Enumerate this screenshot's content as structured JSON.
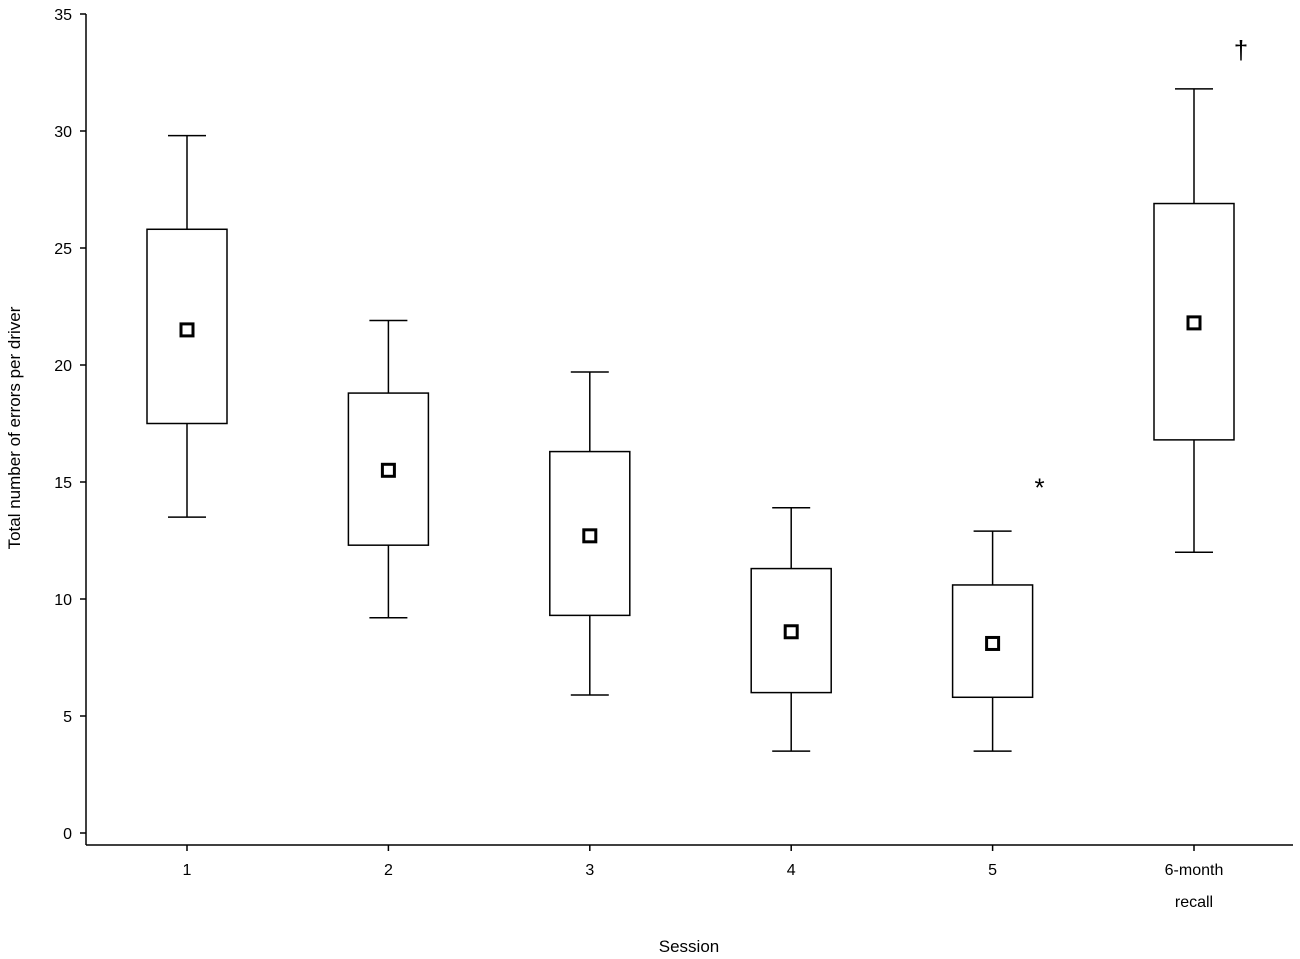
{
  "chart_data": {
    "type": "box",
    "title": "",
    "xlabel": "Session",
    "ylabel": "Total number of errors per driver",
    "ylim": [
      0,
      35
    ],
    "yticks": [
      "0",
      "5",
      "10",
      "15",
      "20",
      "25",
      "30",
      "35"
    ],
    "categories": [
      [
        "1"
      ],
      [
        "2"
      ],
      [
        "3"
      ],
      [
        "4"
      ],
      [
        "5"
      ],
      [
        "6-month",
        "recall"
      ]
    ],
    "boxes": [
      {
        "whisker_low": 13.5,
        "q1": 17.5,
        "mean": 21.5,
        "q3": 25.8,
        "whisker_high": 29.8
      },
      {
        "whisker_low": 9.2,
        "q1": 12.3,
        "mean": 15.5,
        "q3": 18.8,
        "whisker_high": 21.9
      },
      {
        "whisker_low": 5.9,
        "q1": 9.3,
        "mean": 12.7,
        "q3": 16.3,
        "whisker_high": 19.7
      },
      {
        "whisker_low": 3.5,
        "q1": 6.0,
        "mean": 8.6,
        "q3": 11.3,
        "whisker_high": 13.9
      },
      {
        "whisker_low": 3.5,
        "q1": 5.8,
        "mean": 8.1,
        "q3": 10.6,
        "whisker_high": 12.9
      },
      {
        "whisker_low": 12.0,
        "q1": 16.8,
        "mean": 21.8,
        "q3": 26.9,
        "whisker_high": 31.8
      }
    ],
    "annotations": [
      {
        "text": "*",
        "category_index": 4,
        "y": 14.8
      },
      {
        "text": "†",
        "category_index": 5,
        "y": 33.5
      }
    ],
    "grid": false,
    "legend": "none"
  }
}
